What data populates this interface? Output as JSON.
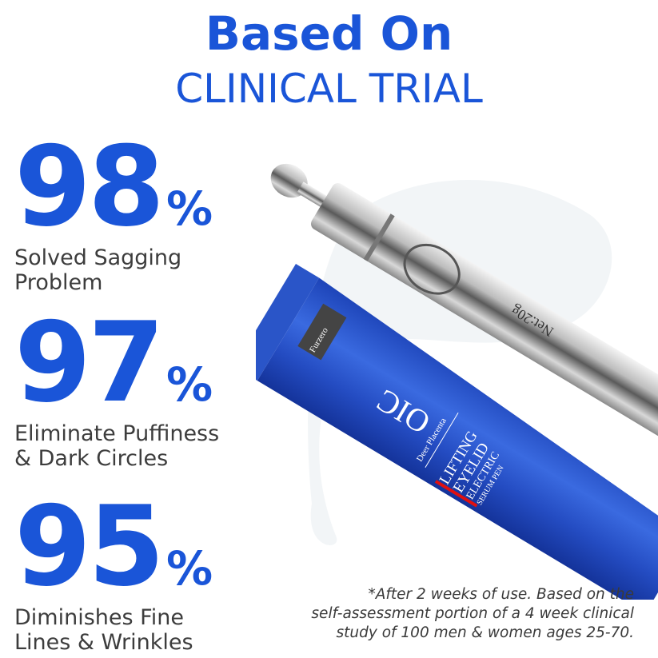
{
  "headline": {
    "line1": "Based On",
    "line2": "CLINICAL TRIAL"
  },
  "stats": [
    {
      "value": "98",
      "unit": "%",
      "label_line1": "Solved Sagging",
      "label_line2": "Problem"
    },
    {
      "value": "97",
      "unit": "%",
      "label_line1": "Eliminate Puffiness",
      "label_line2": "& Dark Circles"
    },
    {
      "value": "95",
      "unit": "%",
      "label_line1": "Diminishes Fine",
      "label_line2": "Lines & Wrinkles"
    }
  ],
  "footnote": {
    "line1": "*After 2 weeks of use. Based on the",
    "line2": "self-assessment portion of a 4 week clinical",
    "line3": "study of 100 men & women ages 25-70."
  },
  "product": {
    "brand_tag": "Furzero",
    "logo": "OIC",
    "sub_brand": "Deer Placenta",
    "name_lines": [
      "LIFTING",
      "EYELID",
      "ELECTRIC",
      "SERUM PEN"
    ],
    "net_weight": "Net:20g",
    "colors": {
      "tube": "#2a55c8",
      "accent_red": "#e01010",
      "silver": "#c8c8c8"
    }
  },
  "colors": {
    "headline_blue": "#1a55d8",
    "label_gray": "#3d3d3d"
  }
}
